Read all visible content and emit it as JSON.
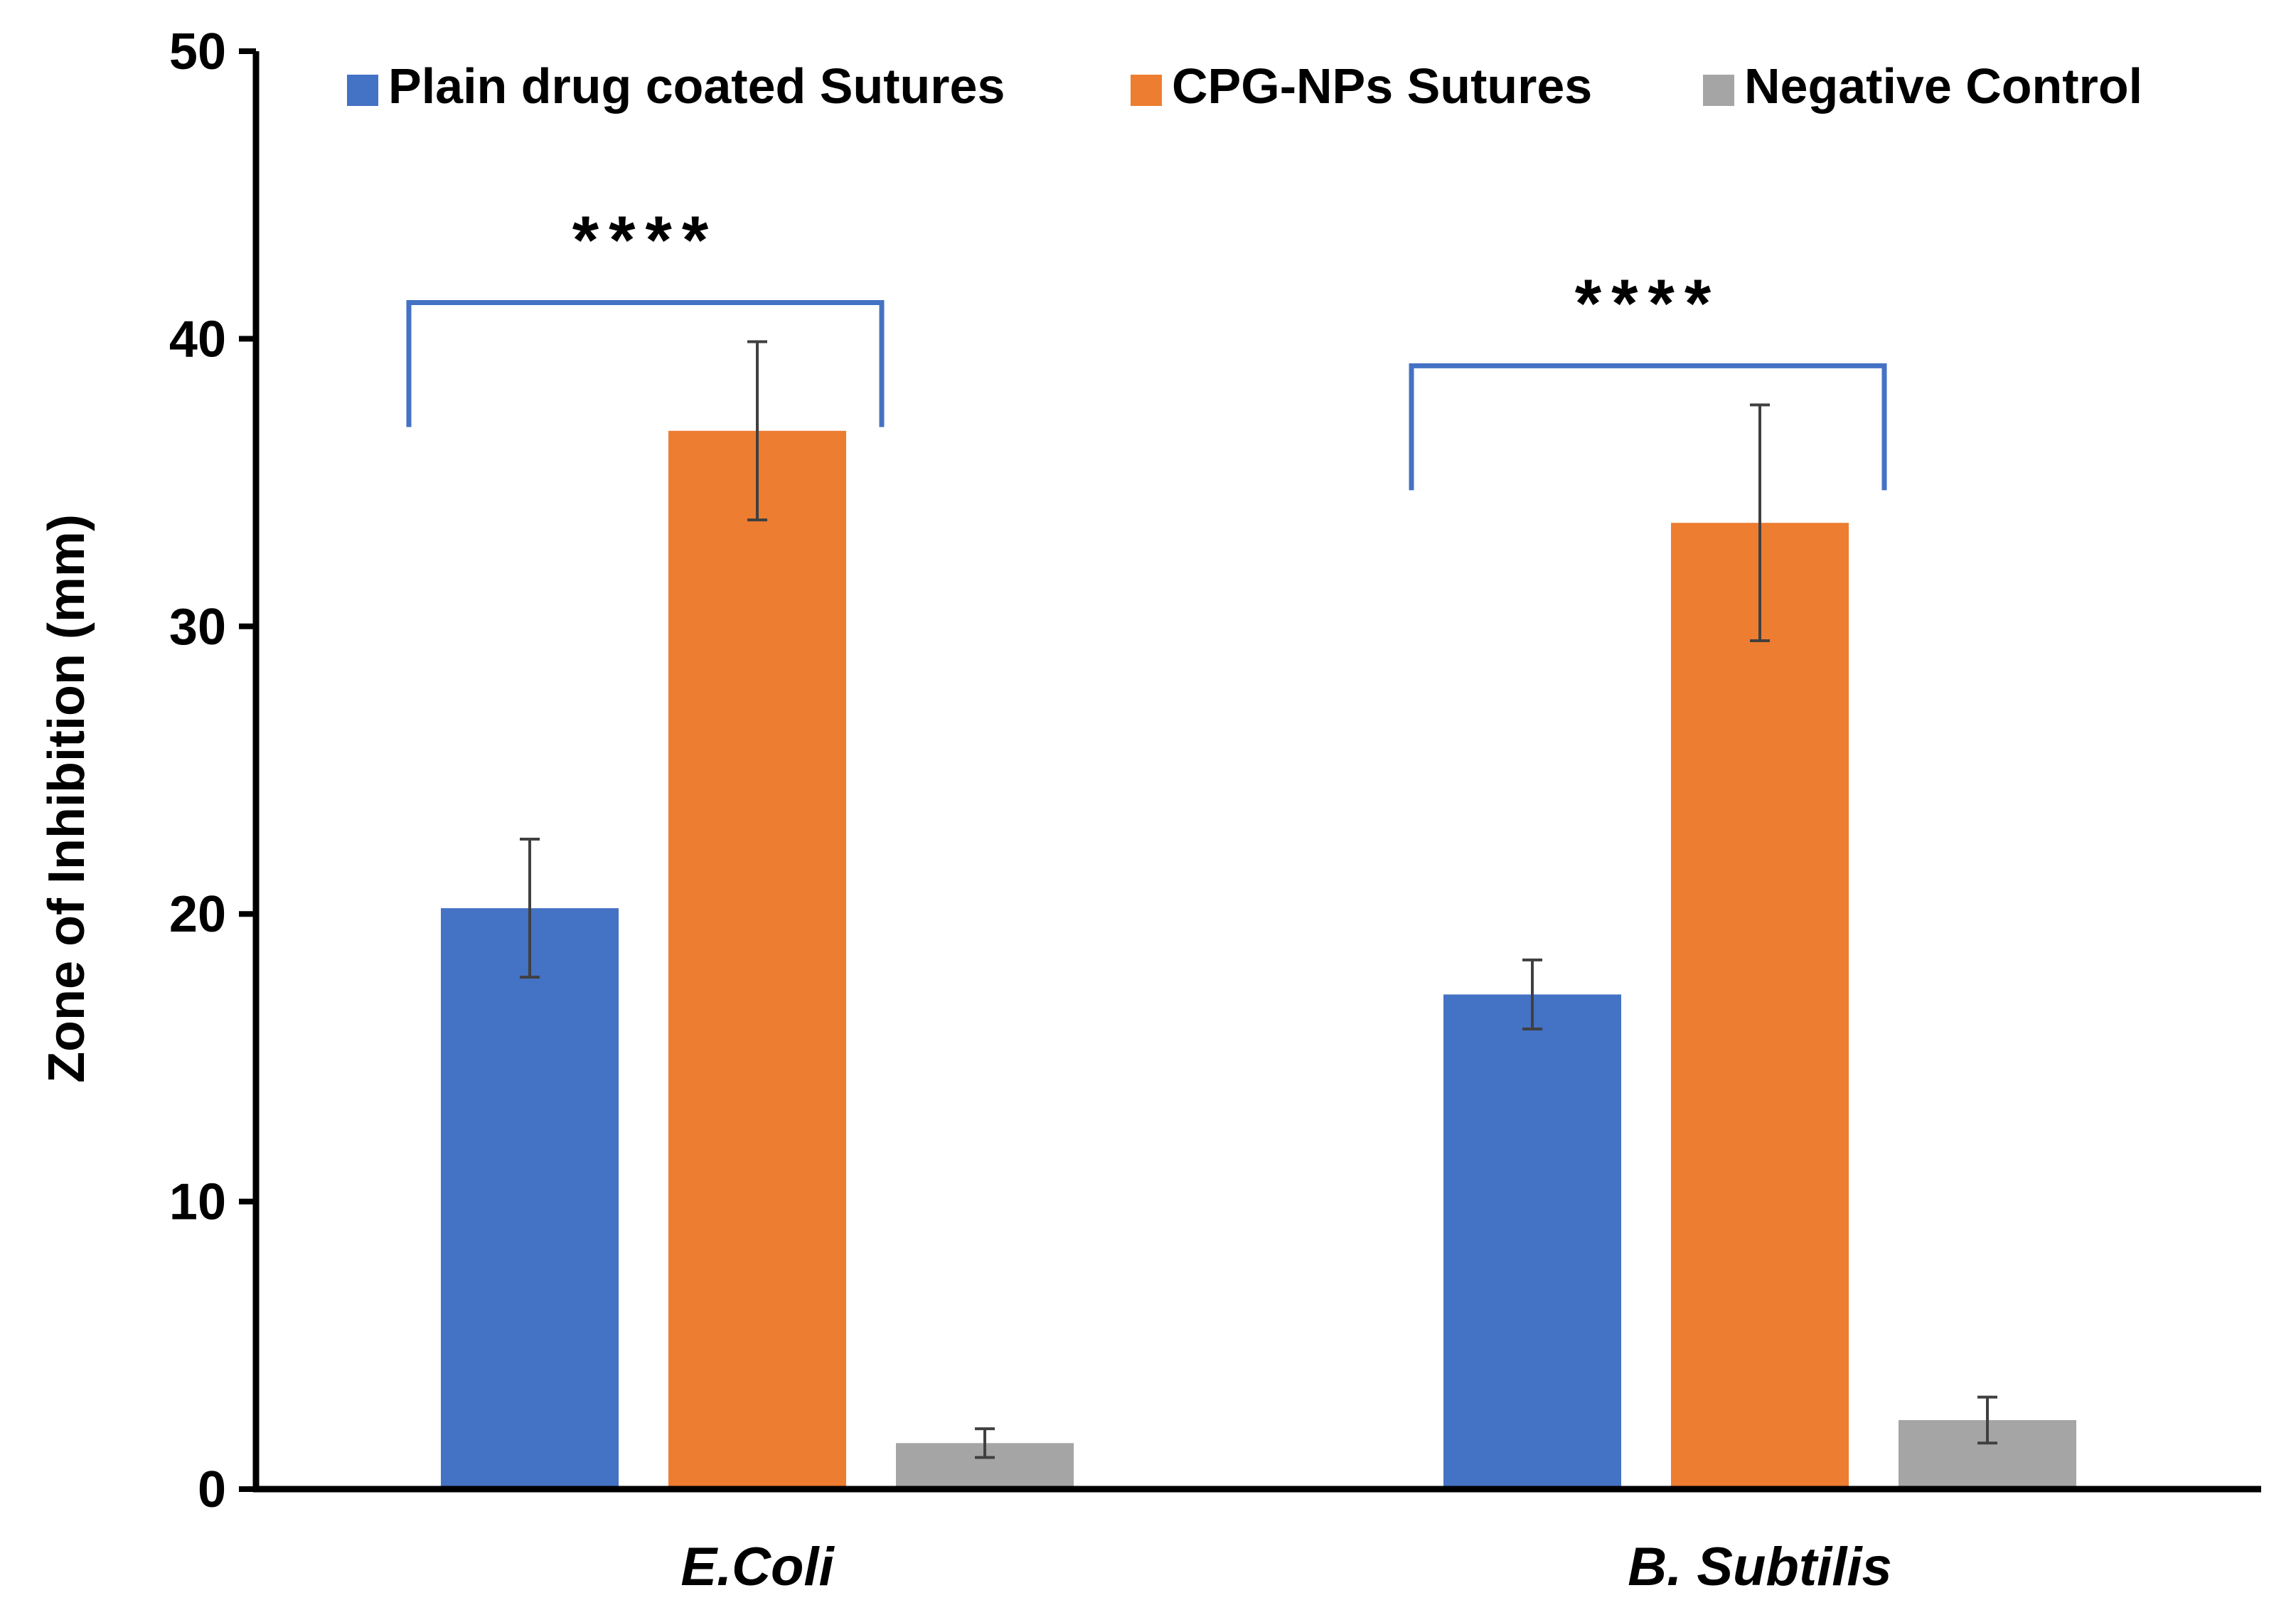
{
  "chart_data": {
    "type": "bar",
    "title": "",
    "xlabel": "",
    "ylabel": "Zone of Inhibition (mm)",
    "ylim": [
      0,
      50
    ],
    "yticks": [
      "0",
      "10",
      "20",
      "30",
      "40",
      "50"
    ],
    "categories": [
      "E.Coli",
      "B. Subtilis"
    ],
    "series": [
      {
        "name": "Plain drug coated Sutures",
        "color": "#4472C4",
        "values": [
          20.2,
          17.2
        ],
        "errors": [
          2.4,
          1.2
        ]
      },
      {
        "name": "CPG-NPs Sutures",
        "color": "#ED7D31",
        "values": [
          36.8,
          33.6
        ],
        "errors": [
          3.1,
          4.1
        ]
      },
      {
        "name": "Negative Control",
        "color": "#A5A5A5",
        "values": [
          1.6,
          2.4
        ],
        "errors": [
          0.5,
          0.8
        ]
      }
    ],
    "legend_position": "top",
    "grid": false,
    "annotations": [
      {
        "category": "E.Coli",
        "text": "****",
        "bracket_color": "#4472C4"
      },
      {
        "category": "B. Subtilis",
        "text": "****",
        "bracket_color": "#4472C4"
      }
    ]
  }
}
